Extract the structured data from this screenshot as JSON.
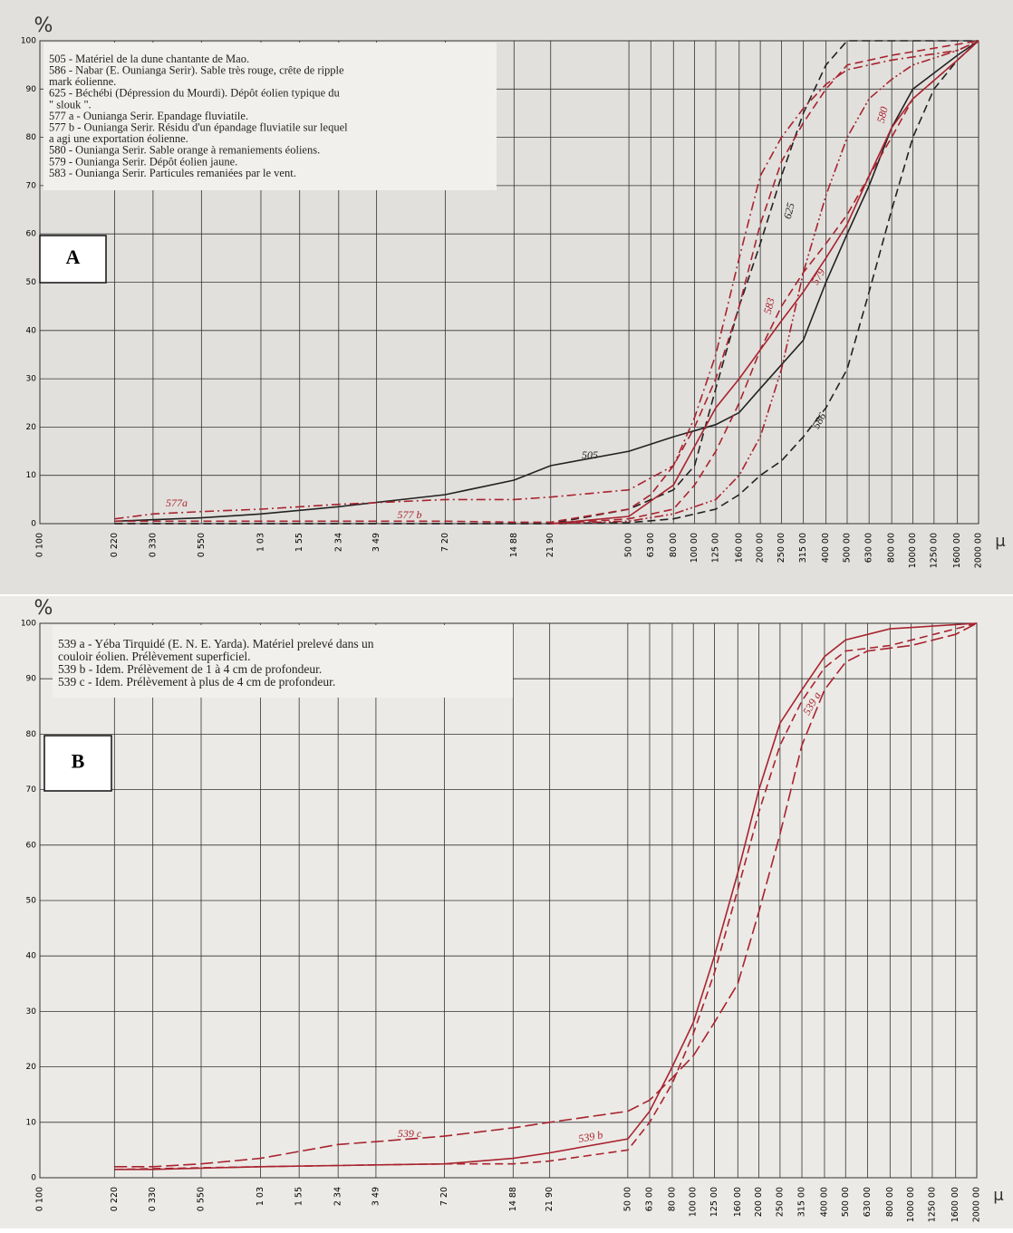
{
  "chart_data": [
    {
      "type": "line",
      "panel_label": "A",
      "y_label": "%",
      "x_label": "μ",
      "legend_text": [
        "505 - Matériel de la dune chantante de Mao.",
        "586 - Nabar (E. Ounianga Serir). Sable très rouge, crête de ripple",
        "mark éolienne.",
        "625 - Béchébi (Dépression du Mourdi). Dépôt éolien typique du",
        "\" slouk \".",
        "577 a - Ounianga Serir. Epandage fluviatile.",
        "577 b - Ounianga Serir. Résidu d'un épandage fluviatile sur lequel",
        "a agi une exportation éolienne.",
        "580 - Ounianga Serir. Sable orange à remaniements éoliens.",
        "579 - Ounianga Serir. Dépôt éolien jaune.",
        "583 - Ounianga Serir. Particules remaniées par le vent."
      ],
      "log_x": true,
      "grid": true,
      "xlim": [
        0.1,
        2000
      ],
      "ylim": [
        0,
        100
      ],
      "yticks": [
        0,
        10,
        20,
        30,
        40,
        50,
        60,
        70,
        80,
        90,
        100
      ],
      "xticks": [
        {
          "value": 0.1,
          "label": "0 100"
        },
        {
          "value": 0.22,
          "label": "0 220"
        },
        {
          "value": 0.33,
          "label": "0 330"
        },
        {
          "value": 0.55,
          "label": "0 550"
        },
        {
          "value": 1.03,
          "label": "1 03"
        },
        {
          "value": 1.55,
          "label": "1 55"
        },
        {
          "value": 2.34,
          "label": "2 34"
        },
        {
          "value": 3.49,
          "label": "3 49"
        },
        {
          "value": 7.2,
          "label": "7 20"
        },
        {
          "value": 14.88,
          "label": "14 88"
        },
        {
          "value": 21.9,
          "label": "21 90"
        },
        {
          "value": 50,
          "label": "50 00"
        },
        {
          "value": 63,
          "label": "63 00"
        },
        {
          "value": 80,
          "label": "80 00"
        },
        {
          "value": 100,
          "label": "100 00"
        },
        {
          "value": 125,
          "label": "125 00"
        },
        {
          "value": 160,
          "label": "160 00"
        },
        {
          "value": 200,
          "label": "200 00"
        },
        {
          "value": 250,
          "label": "250 00"
        },
        {
          "value": 315,
          "label": "315 00"
        },
        {
          "value": 400,
          "label": "400 00"
        },
        {
          "value": 500,
          "label": "500 00"
        },
        {
          "value": 630,
          "label": "630 00"
        },
        {
          "value": 800,
          "label": "800 00"
        },
        {
          "value": 1000,
          "label": "1000 00"
        },
        {
          "value": 1250,
          "label": "1250 00"
        },
        {
          "value": 1600,
          "label": "1600 00"
        },
        {
          "value": 2000,
          "label": "2000 00"
        }
      ],
      "series": [
        {
          "name": "505",
          "color": "#222222",
          "line_style": "solid",
          "x": [
            0.22,
            0.55,
            1.03,
            2.34,
            7.2,
            14.88,
            21.9,
            50,
            80,
            125,
            160,
            200,
            315,
            400,
            500,
            630,
            800,
            1000,
            1600,
            2000
          ],
          "values": [
            0.5,
            1.2,
            2,
            3.5,
            6,
            9,
            12,
            15,
            18,
            20.5,
            23,
            28,
            38,
            50,
            60,
            70,
            82,
            90,
            97,
            100
          ]
        },
        {
          "name": "586",
          "color": "#222222",
          "line_style": "dashed",
          "x": [
            0.22,
            21.9,
            50,
            80,
            125,
            160,
            200,
            250,
            315,
            400,
            500,
            630,
            800,
            1000,
            1250,
            1600,
            2000
          ],
          "values": [
            0,
            0,
            0.2,
            1,
            3,
            6,
            10,
            13,
            18,
            24,
            32,
            48,
            65,
            80,
            90,
            96,
            100
          ]
        },
        {
          "name": "625",
          "color": "#222222",
          "line_style": "dashed",
          "x": [
            0.22,
            21.9,
            50,
            80,
            100,
            125,
            160,
            200,
            250,
            315,
            400,
            500,
            2000
          ],
          "values": [
            0,
            0,
            3,
            7,
            12,
            28,
            45,
            58,
            72,
            85,
            95,
            100,
            100
          ]
        },
        {
          "name": "577a",
          "color": "#a8232f",
          "line_style": "dash-dot",
          "x": [
            0.22,
            0.33,
            0.55,
            1.03,
            2.34,
            7.2,
            14.88,
            21.9,
            50,
            80,
            100,
            125,
            160,
            200,
            250,
            315,
            400,
            500,
            800,
            1600,
            2000
          ],
          "values": [
            1,
            2,
            2.5,
            3,
            4,
            5,
            5,
            5.5,
            7,
            12,
            22,
            35,
            55,
            72,
            80,
            86,
            91,
            94,
            96,
            98,
            100
          ]
        },
        {
          "name": "577 b",
          "color": "#a8232f",
          "line_style": "dashed",
          "x": [
            0.22,
            2.34,
            7.2,
            14.88,
            21.9,
            50,
            63,
            80,
            100,
            125,
            160,
            200,
            250,
            315,
            400,
            500,
            800,
            2000
          ],
          "values": [
            0.5,
            0.5,
            0.5,
            0.3,
            0.3,
            3,
            6,
            12,
            20,
            30,
            45,
            62,
            75,
            83,
            90,
            95,
            97,
            100
          ]
        },
        {
          "name": "580",
          "color": "#a8232f",
          "line_style": "dash-dot-dot",
          "x": [
            21.9,
            50,
            80,
            125,
            160,
            200,
            250,
            315,
            400,
            500,
            630,
            800,
            1000,
            1600,
            2000
          ],
          "values": [
            0,
            0.5,
            2,
            5,
            10,
            18,
            32,
            52,
            68,
            80,
            88,
            92,
            95,
            98,
            100
          ]
        },
        {
          "name": "579",
          "color": "#a8232f",
          "line_style": "solid",
          "x": [
            21.9,
            50,
            80,
            100,
            125,
            160,
            200,
            250,
            315,
            400,
            500,
            630,
            800,
            1000,
            1600,
            2000
          ],
          "values": [
            0,
            1.5,
            8,
            16,
            24,
            30,
            36,
            42,
            48,
            55,
            62,
            72,
            82,
            88,
            96,
            100
          ]
        },
        {
          "name": "583",
          "color": "#a8232f",
          "line_style": "dashed",
          "x": [
            21.9,
            50,
            80,
            100,
            125,
            160,
            200,
            250,
            315,
            400,
            500,
            630,
            800,
            1000,
            1600,
            2000
          ],
          "values": [
            0,
            1,
            3,
            8,
            15,
            25,
            36,
            45,
            52,
            58,
            64,
            72,
            80,
            88,
            96,
            100
          ]
        }
      ]
    },
    {
      "type": "line",
      "panel_label": "B",
      "y_label": "%",
      "x_label": "μ",
      "legend_text": [
        "539 a - Yéba Tirquidé (E. N. E. Yarda). Matériel prelevé dans un",
        "couloir éolien. Prélèvement superficiel.",
        "539 b - Idem. Prélèvement de 1 à 4 cm de profondeur.",
        "539 c - Idem. Prélèvement à plus de 4 cm de profondeur."
      ],
      "log_x": true,
      "grid": true,
      "xlim": [
        0.1,
        2000
      ],
      "ylim": [
        0,
        100
      ],
      "yticks": [
        0,
        10,
        20,
        30,
        40,
        50,
        60,
        70,
        80,
        90,
        100
      ],
      "xticks": [
        {
          "value": 0.1,
          "label": "0 100"
        },
        {
          "value": 0.22,
          "label": "0 220"
        },
        {
          "value": 0.33,
          "label": "0 330"
        },
        {
          "value": 0.55,
          "label": "0 550"
        },
        {
          "value": 1.03,
          "label": "1 03"
        },
        {
          "value": 1.55,
          "label": "1 55"
        },
        {
          "value": 2.34,
          "label": "2 34"
        },
        {
          "value": 3.49,
          "label": "3 49"
        },
        {
          "value": 7.2,
          "label": "7 20"
        },
        {
          "value": 14.88,
          "label": "14 88"
        },
        {
          "value": 21.9,
          "label": "21 90"
        },
        {
          "value": 50,
          "label": "50 00"
        },
        {
          "value": 63,
          "label": "63 00"
        },
        {
          "value": 80,
          "label": "80 00"
        },
        {
          "value": 100,
          "label": "100 00"
        },
        {
          "value": 125,
          "label": "125 00"
        },
        {
          "value": 160,
          "label": "160 00"
        },
        {
          "value": 200,
          "label": "200 00"
        },
        {
          "value": 250,
          "label": "250 00"
        },
        {
          "value": 315,
          "label": "315 00"
        },
        {
          "value": 400,
          "label": "400 00"
        },
        {
          "value": 500,
          "label": "500 00"
        },
        {
          "value": 630,
          "label": "630 00"
        },
        {
          "value": 800,
          "label": "800 00"
        },
        {
          "value": 1000,
          "label": "1000 00"
        },
        {
          "value": 1250,
          "label": "1250 00"
        },
        {
          "value": 1600,
          "label": "1600 00"
        },
        {
          "value": 2000,
          "label": "2000 00"
        }
      ],
      "series": [
        {
          "name": "539 a",
          "color": "#a8232f",
          "line_style": "solid",
          "x": [
            0.22,
            0.33,
            1.03,
            2.34,
            7.2,
            14.88,
            21.9,
            50,
            63,
            80,
            100,
            125,
            160,
            200,
            250,
            315,
            400,
            500,
            800,
            2000
          ],
          "values": [
            1.5,
            1.5,
            2,
            2.2,
            2.5,
            3.5,
            4.5,
            7,
            12,
            20,
            28,
            40,
            55,
            70,
            82,
            88,
            94,
            97,
            99,
            100
          ]
        },
        {
          "name": "539 b",
          "color": "#a8232f",
          "line_style": "dashed",
          "x": [
            0.22,
            1.03,
            7.2,
            14.88,
            21.9,
            50,
            63,
            80,
            100,
            125,
            160,
            200,
            250,
            315,
            400,
            500,
            800,
            1600,
            2000
          ],
          "values": [
            1.5,
            2,
            2.5,
            2.5,
            3,
            5,
            10,
            17,
            26,
            37,
            52,
            66,
            78,
            86,
            92,
            95,
            96,
            99,
            100
          ]
        },
        {
          "name": "539 c",
          "color": "#a8232f",
          "line_style": "long-dash",
          "x": [
            0.22,
            0.33,
            0.55,
            1.03,
            2.34,
            3.49,
            7.2,
            14.88,
            21.9,
            50,
            63,
            80,
            100,
            125,
            160,
            200,
            250,
            315,
            400,
            500,
            630,
            1000,
            1600,
            2000
          ],
          "values": [
            2,
            2,
            2.5,
            3.5,
            6,
            6.5,
            7.5,
            9,
            10,
            12,
            14,
            18,
            22,
            28,
            35,
            48,
            62,
            78,
            88,
            93,
            95,
            96,
            98,
            100
          ]
        }
      ]
    }
  ]
}
